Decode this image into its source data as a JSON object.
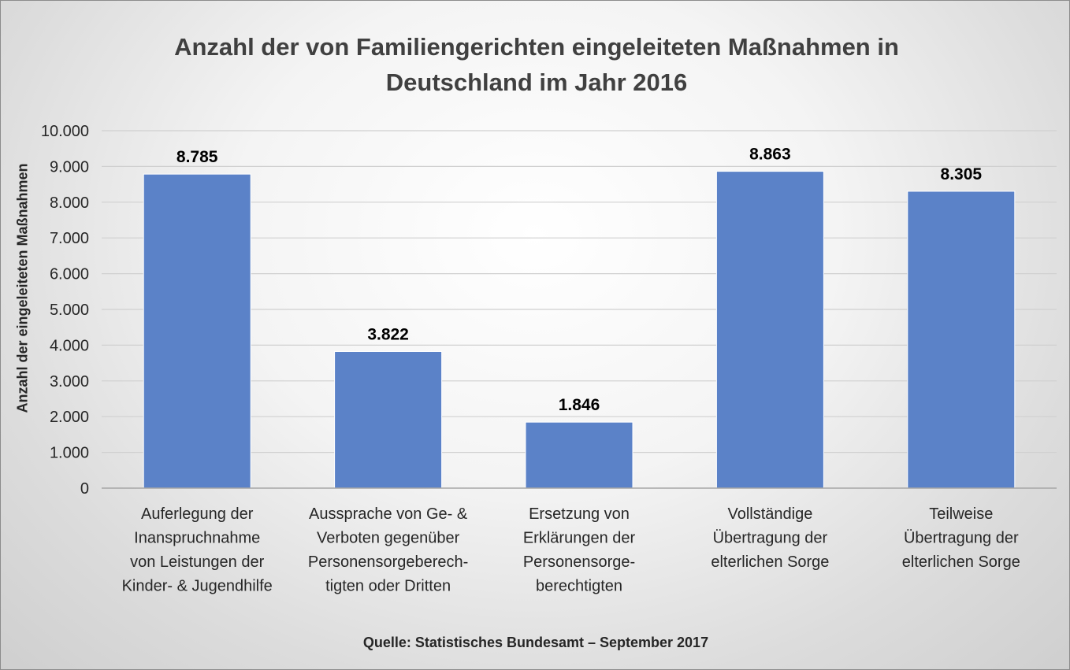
{
  "chart_data": {
    "type": "bar",
    "title": "Anzahl der von Familiengerichten eingeleiteten Maßnahmen in Deutschland im Jahr 2016",
    "ylabel": "Anzahl der eingeleiteten Maßnahmen",
    "xlabel": "",
    "ylim": [
      0,
      10000
    ],
    "yticks": [
      0,
      1000,
      2000,
      3000,
      4000,
      5000,
      6000,
      7000,
      8000,
      9000,
      10000
    ],
    "ytick_labels": [
      "0",
      "1.000",
      "2.000",
      "3.000",
      "4.000",
      "5.000",
      "6.000",
      "7.000",
      "8.000",
      "9.000",
      "10.000"
    ],
    "grid": true,
    "legend": "none",
    "categories": [
      [
        "Auferlegung der",
        "Inanspruchnahme",
        "von Leistungen der",
        "Kinder- & Jugendhilfe"
      ],
      [
        "Aussprache von Ge- &",
        "Verboten gegenüber",
        "Personensorgeberech-",
        "tigten oder Dritten"
      ],
      [
        "Ersetzung von",
        "Erklärungen der",
        "Personensorge-",
        "berechtigten"
      ],
      [
        "Vollständige",
        "Übertragung der",
        "elterlichen Sorge"
      ],
      [
        "Teilweise",
        "Übertragung der",
        "elterlichen Sorge"
      ]
    ],
    "values": [
      8785,
      3822,
      1846,
      8863,
      8305
    ],
    "value_labels": [
      "8.785",
      "3.822",
      "1.846",
      "8.863",
      "8.305"
    ],
    "bar_color": "#5b82c8",
    "source": "Quelle: Statistisches Bundesamt – September 2017"
  }
}
